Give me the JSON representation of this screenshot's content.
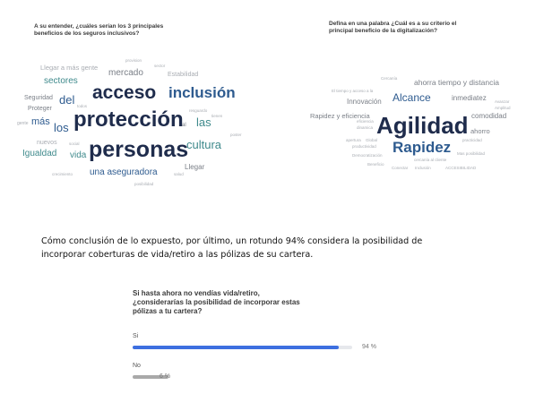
{
  "left_panel": {
    "question_line1": "A su entender, ¿cuáles serían los 3 principales",
    "question_line2": "beneficios de los seguros inclusivos?",
    "words": [
      {
        "text": "acceso",
        "weight": 5
      },
      {
        "text": "inclusión",
        "weight": 4
      },
      {
        "text": "protección",
        "weight": 5
      },
      {
        "text": "personas",
        "weight": 5
      },
      {
        "text": "cultura",
        "weight": 3
      },
      {
        "text": "sectores",
        "weight": 2
      },
      {
        "text": "mercado",
        "weight": 2
      },
      {
        "text": "del",
        "weight": 3
      },
      {
        "text": "los",
        "weight": 3
      },
      {
        "text": "las",
        "weight": 3
      },
      {
        "text": "más",
        "weight": 3
      },
      {
        "text": "vida",
        "weight": 2
      },
      {
        "text": "Igualdad",
        "weight": 2
      },
      {
        "text": "una aseguradora",
        "weight": 2
      },
      {
        "text": "Llegar a más gente",
        "weight": 1
      },
      {
        "text": "Estabilidad",
        "weight": 1
      },
      {
        "text": "Seguridad",
        "weight": 1
      },
      {
        "text": "Proteger",
        "weight": 1
      },
      {
        "text": "nuevos",
        "weight": 1
      },
      {
        "text": "Llegar",
        "weight": 1
      },
      {
        "text": "gente",
        "weight": 0
      },
      {
        "text": "provision",
        "weight": 0
      },
      {
        "text": "sector",
        "weight": 0
      },
      {
        "text": "todos",
        "weight": 0
      },
      {
        "text": "social",
        "weight": 0
      },
      {
        "text": "resguardo",
        "weight": 0
      },
      {
        "text": "tienen",
        "weight": 0
      },
      {
        "text": "poster",
        "weight": 0
      },
      {
        "text": "al",
        "weight": 0
      },
      {
        "text": "salud",
        "weight": 0
      },
      {
        "text": "crecimiento",
        "weight": 0
      },
      {
        "text": "posibilidad",
        "weight": 0
      }
    ]
  },
  "right_panel": {
    "question_line1": "Defina en una palabra ¿Cuál es a su criterio el",
    "question_line2": "principal beneficio de la digitalización?",
    "words": [
      {
        "text": "Agilidad",
        "weight": 5
      },
      {
        "text": "Rapidez",
        "weight": 4
      },
      {
        "text": "Alcance",
        "weight": 3
      },
      {
        "text": "ahorra tiempo y distancia",
        "weight": 2
      },
      {
        "text": "Innovación",
        "weight": 1
      },
      {
        "text": "inmediatez",
        "weight": 1
      },
      {
        "text": "Rapidez y eficiencia",
        "weight": 1
      },
      {
        "text": "comodidad",
        "weight": 1
      },
      {
        "text": "ahorro",
        "weight": 1
      },
      {
        "text": "Cercanía",
        "weight": 0
      },
      {
        "text": "El tiempo y acceso a la",
        "weight": 0
      },
      {
        "text": "Avanzar",
        "weight": 0
      },
      {
        "text": "Amplitud",
        "weight": 0
      },
      {
        "text": "eficiencia",
        "weight": 0
      },
      {
        "text": "dinamica",
        "weight": 0
      },
      {
        "text": "apertura",
        "weight": 0
      },
      {
        "text": "Global",
        "weight": 0
      },
      {
        "text": "productividad",
        "weight": 0
      },
      {
        "text": "Democratización",
        "weight": 0
      },
      {
        "text": "cercanía al cliente",
        "weight": 0
      },
      {
        "text": "practicidad",
        "weight": 0
      },
      {
        "text": "Mas posibilidad",
        "weight": 0
      },
      {
        "text": "Beneficio",
        "weight": 0
      },
      {
        "text": "Conectar",
        "weight": 0
      },
      {
        "text": "Inclusión",
        "weight": 0
      },
      {
        "text": "ACCESIBILIDAD",
        "weight": 0
      }
    ]
  },
  "caption": {
    "line1": "Cómo conclusión de lo expuesto, por último, un rotundo 94% considera la posibilidad de",
    "line2": "incorporar coberturas de vida/retiro a las pólizas de su cartera."
  },
  "poll": {
    "question_line1": "Si hasta ahora no vendías vida/retiro,",
    "question_line2": "¿considerarías la posibilidad de incorporar estas",
    "question_line3": "pólizas a tu cartera?",
    "options": [
      {
        "label": "Si",
        "percent": 94,
        "percent_text": "94 %",
        "color": "#3d6fe0"
      },
      {
        "label": "No",
        "percent": 6,
        "percent_text": "6 %",
        "color": "#a9a9a9"
      }
    ]
  },
  "colors": {
    "navy": "#1f2c4c",
    "blue": "#2e5b8f",
    "teal": "#3f8a8c",
    "gray": "#7a7f87",
    "light": "#a9adb3"
  }
}
